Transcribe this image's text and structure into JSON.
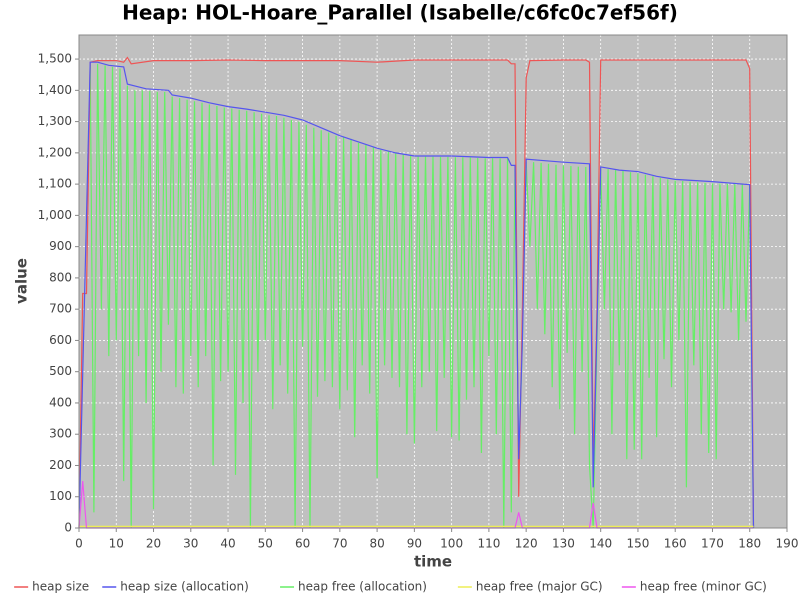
{
  "chart_data": {
    "type": "line",
    "title": "Heap: HOL-Hoare_Parallel (Isabelle/c6fc0c7ef56f)",
    "xlabel": "time",
    "ylabel": "value",
    "xlim": [
      0,
      190
    ],
    "ylim": [
      0,
      1577
    ],
    "xticks": [
      0,
      10,
      20,
      30,
      40,
      50,
      60,
      70,
      80,
      90,
      100,
      110,
      120,
      130,
      140,
      150,
      160,
      170,
      180,
      190
    ],
    "yticks": [
      0,
      100,
      200,
      300,
      400,
      500,
      600,
      700,
      800,
      900,
      {
        "value": 1000,
        "label": "1,000"
      },
      {
        "value": 1100,
        "label": "1,100"
      },
      {
        "value": 1200,
        "label": "1,200"
      },
      {
        "value": 1300,
        "label": "1,300"
      },
      {
        "value": 1400,
        "label": "1,400"
      },
      {
        "value": 1500,
        "label": "1,500"
      }
    ],
    "grid": true,
    "legend": "bottom",
    "series": [
      {
        "name": "heap free (allocation)",
        "color": "#66ee66",
        "x": [
          3,
          4,
          5,
          6,
          7,
          8,
          9,
          10,
          11,
          12,
          13,
          14,
          15,
          16,
          17,
          18,
          19,
          20,
          21,
          22,
          23,
          24,
          25,
          26,
          27,
          28,
          29,
          30,
          31,
          32,
          33,
          34,
          35,
          36,
          37,
          38,
          39,
          40,
          41,
          42,
          43,
          44,
          45,
          46,
          47,
          48,
          49,
          50,
          51,
          52,
          53,
          54,
          55,
          56,
          57,
          58,
          59,
          60,
          61,
          62,
          63,
          64,
          65,
          66,
          67,
          68,
          69,
          70,
          71,
          72,
          73,
          74,
          75,
          76,
          77,
          78,
          79,
          80,
          81,
          82,
          83,
          84,
          85,
          86,
          87,
          88,
          89,
          90,
          91,
          92,
          93,
          94,
          95,
          96,
          97,
          98,
          99,
          100,
          101,
          102,
          103,
          104,
          105,
          106,
          107,
          108,
          109,
          110,
          111,
          112,
          113,
          114,
          115,
          116,
          117,
          118,
          119,
          120,
          121,
          122,
          123,
          124,
          125,
          126,
          127,
          128,
          129,
          130,
          131,
          132,
          133,
          134,
          135,
          136,
          137,
          138,
          139,
          140,
          141,
          142,
          143,
          144,
          145,
          146,
          147,
          148,
          149,
          150,
          151,
          152,
          153,
          154,
          155,
          156,
          157,
          158,
          159,
          160,
          161,
          162,
          163,
          164,
          165,
          166,
          167,
          168,
          169,
          170,
          171,
          172,
          173,
          174,
          175,
          176,
          177,
          178,
          179,
          180,
          181
        ],
        "values": [
          1480,
          50,
          1485,
          700,
          1480,
          550,
          1475,
          600,
          1470,
          150,
          1415,
          0,
          1400,
          550,
          1400,
          400,
          1398,
          60,
          1395,
          500,
          1395,
          650,
          1380,
          450,
          1375,
          430,
          1370,
          550,
          1365,
          450,
          1360,
          550,
          1355,
          200,
          1350,
          470,
          1345,
          500,
          1342,
          170,
          1338,
          400,
          1335,
          0,
          1330,
          500,
          1325,
          600,
          1320,
          380,
          1318,
          520,
          1312,
          430,
          1305,
          0,
          1300,
          580,
          1290,
          0,
          1280,
          420,
          1272,
          470,
          1265,
          450,
          1255,
          380,
          1250,
          440,
          1245,
          290,
          1232,
          520,
          1225,
          430,
          1218,
          160,
          1210,
          520,
          1205,
          480,
          1198,
          450,
          1195,
          300,
          1190,
          270,
          1188,
          450,
          1188,
          500,
          1188,
          310,
          1187,
          480,
          1187,
          290,
          1186,
          280,
          1186,
          410,
          1185,
          450,
          1184,
          240,
          1183,
          550,
          1183,
          300,
          1182,
          0,
          1182,
          50,
          1150,
          200,
          600,
          1170,
          900,
          1170,
          700,
          1168,
          620,
          1165,
          450,
          1162,
          380,
          1160,
          560,
          1158,
          300,
          1156,
          500,
          1155,
          200,
          0,
          600,
          1150,
          700,
          1148,
          300,
          1145,
          520,
          1142,
          220,
          1138,
          250,
          1135,
          220,
          1130,
          480,
          1125,
          290,
          1120,
          540,
          1115,
          450,
          1112,
          600,
          1110,
          130,
          1108,
          520,
          1106,
          300,
          1104,
          240,
          1103,
          220,
          1102,
          700,
          1101,
          690,
          1100,
          600,
          1099,
          660,
          1098,
          0
        ]
      },
      {
        "name": "heap size",
        "color": "#ee5555",
        "x": [
          0,
          1,
          2,
          3,
          5,
          10,
          12,
          13,
          14,
          20,
          30,
          40,
          50,
          60,
          70,
          80,
          90,
          100,
          110,
          115,
          116,
          117,
          118,
          119,
          120,
          121,
          130,
          136,
          137,
          138,
          139,
          140,
          150,
          160,
          170,
          179,
          180,
          181
        ],
        "values": [
          0,
          750,
          750,
          1490,
          1495,
          1495,
          1490,
          1505,
          1485,
          1495,
          1495,
          1497,
          1495,
          1495,
          1495,
          1490,
          1497,
          1497,
          1497,
          1497,
          1485,
          1485,
          100,
          700,
          1440,
          1495,
          1497,
          1497,
          1490,
          200,
          700,
          1497,
          1497,
          1497,
          1497,
          1497,
          1470,
          0
        ]
      },
      {
        "name": "heap size (allocation)",
        "color": "#5555ee",
        "x": [
          0,
          3,
          5,
          8,
          12,
          13,
          18,
          24,
          25,
          30,
          35,
          40,
          45,
          50,
          55,
          60,
          65,
          70,
          75,
          80,
          85,
          90,
          100,
          110,
          115,
          116,
          117,
          118,
          119,
          120,
          125,
          130,
          137,
          138,
          140,
          145,
          150,
          155,
          160,
          170,
          180,
          181
        ],
        "values": [
          0,
          1490,
          1490,
          1480,
          1475,
          1420,
          1405,
          1400,
          1385,
          1375,
          1360,
          1348,
          1340,
          1330,
          1320,
          1305,
          1280,
          1255,
          1235,
          1215,
          1200,
          1190,
          1190,
          1185,
          1185,
          1160,
          1160,
          220,
          600,
          1180,
          1175,
          1170,
          1165,
          130,
          1155,
          1145,
          1140,
          1125,
          1115,
          1108,
          1098,
          0
        ]
      },
      {
        "name": "heap free (major GC)",
        "color": "#eeee55",
        "x": [
          0,
          118,
          138,
          181
        ],
        "values": [
          5,
          5,
          5,
          5
        ]
      },
      {
        "name": "heap free (minor GC)",
        "color": "#ee55ee",
        "x": [
          0,
          1,
          2,
          117,
          118,
          119,
          137,
          138,
          139,
          181
        ],
        "values": [
          0,
          150,
          0,
          0,
          50,
          0,
          0,
          80,
          0,
          0
        ]
      }
    ]
  }
}
